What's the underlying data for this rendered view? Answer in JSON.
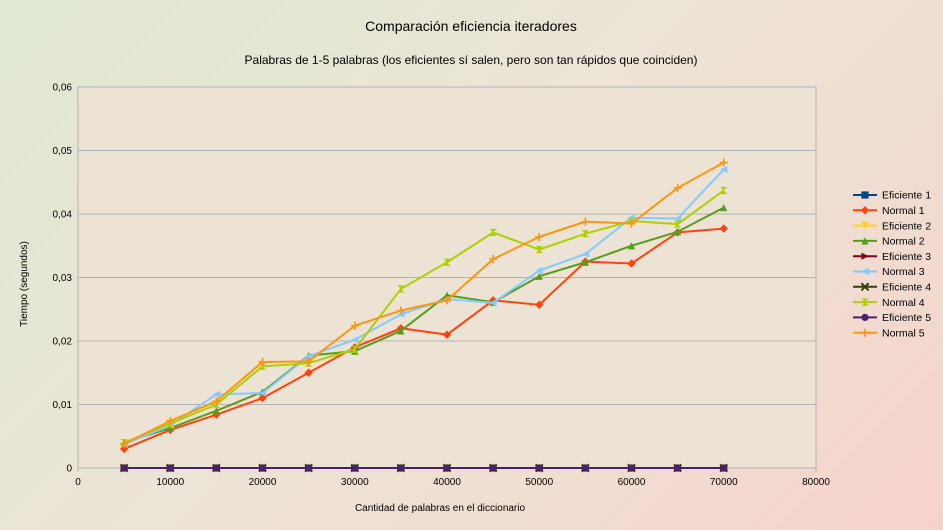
{
  "chart_data": {
    "type": "line",
    "title": "Comparación eficiencia iteradores",
    "subtitle": "Palabras de 1-5 palabras (los eficientes sí salen, pero son tan rápidos que coinciden)",
    "xlabel": "Cantidad de palabras en el diccionario",
    "ylabel": "Tiempo (segundos)",
    "xlim": [
      0,
      80000
    ],
    "ylim": [
      0,
      0.06
    ],
    "xticks": [
      0,
      10000,
      20000,
      30000,
      40000,
      50000,
      60000,
      70000,
      80000
    ],
    "yticks": [
      0,
      0.01,
      0.02,
      0.03,
      0.04,
      0.05,
      0.06
    ],
    "xtick_labels": [
      "0",
      "10000",
      "20000",
      "30000",
      "40000",
      "50000",
      "60000",
      "70000",
      "80000"
    ],
    "ytick_labels": [
      "0",
      "0,01",
      "0,02",
      "0,03",
      "0,04",
      "0,05",
      "0,06"
    ],
    "grid": "horizontal",
    "legend_position": "right",
    "x": [
      5000,
      10000,
      15000,
      20000,
      25000,
      30000,
      35000,
      40000,
      45000,
      50000,
      55000,
      60000,
      65000,
      70000
    ],
    "series": [
      {
        "name": "Eficiente 1",
        "color": "#004586",
        "marker": "square",
        "values": [
          0,
          0,
          0,
          0,
          0,
          0,
          0,
          0,
          0,
          0,
          0,
          0,
          0,
          0
        ]
      },
      {
        "name": "Normal 1",
        "color": "#ff420e",
        "marker": "diamond",
        "values": [
          0.003,
          0.006,
          0.0084,
          0.011,
          0.015,
          0.019,
          0.022,
          0.021,
          0.0264,
          0.0257,
          0.0325,
          0.0322,
          0.0371,
          0.0377
        ]
      },
      {
        "name": "Eficiente 2",
        "color": "#ffd320",
        "marker": "triangle-down",
        "values": [
          0,
          0,
          0,
          0,
          0,
          0,
          0,
          0,
          0,
          0,
          0,
          0,
          0,
          0
        ]
      },
      {
        "name": "Normal 2",
        "color": "#579d1c",
        "marker": "triangle-up",
        "values": [
          0.004,
          0.0063,
          0.009,
          0.012,
          0.0177,
          0.0184,
          0.0216,
          0.0272,
          0.0261,
          0.0302,
          0.0324,
          0.035,
          0.0372,
          0.041
        ]
      },
      {
        "name": "Eficiente 3",
        "color": "#7e0021",
        "marker": "triangle-right",
        "values": [
          0,
          0,
          0,
          0,
          0,
          0,
          0,
          0,
          0,
          0,
          0,
          0,
          0,
          0
        ]
      },
      {
        "name": "Normal 3",
        "color": "#83caff",
        "marker": "triangle-left",
        "values": [
          0.0037,
          0.0067,
          0.0116,
          0.0118,
          0.0176,
          0.0202,
          0.0242,
          0.0266,
          0.026,
          0.0311,
          0.0337,
          0.0394,
          0.0393,
          0.047
        ]
      },
      {
        "name": "Eficiente 4",
        "color": "#314004",
        "marker": "x",
        "values": [
          0,
          0,
          0,
          0,
          0,
          0,
          0,
          0,
          0,
          0,
          0,
          0,
          0,
          0
        ]
      },
      {
        "name": "Normal 4",
        "color": "#aecf00",
        "marker": "hourglass",
        "values": [
          0.004,
          0.007,
          0.01,
          0.016,
          0.0165,
          0.0187,
          0.0282,
          0.0324,
          0.0371,
          0.0344,
          0.0369,
          0.0389,
          0.0384,
          0.0437
        ]
      },
      {
        "name": "Eficiente 5",
        "color": "#4b1f6f",
        "marker": "circle",
        "values": [
          0,
          0,
          0,
          0,
          0,
          0,
          0,
          0,
          0,
          0,
          0,
          0,
          0,
          0
        ]
      },
      {
        "name": "Normal 5",
        "color": "#ff950e",
        "marker": "plus",
        "values": [
          0.0038,
          0.0074,
          0.0105,
          0.0167,
          0.0168,
          0.0224,
          0.0248,
          0.0264,
          0.0329,
          0.0364,
          0.0388,
          0.0385,
          0.0441,
          0.0481
        ]
      }
    ]
  }
}
